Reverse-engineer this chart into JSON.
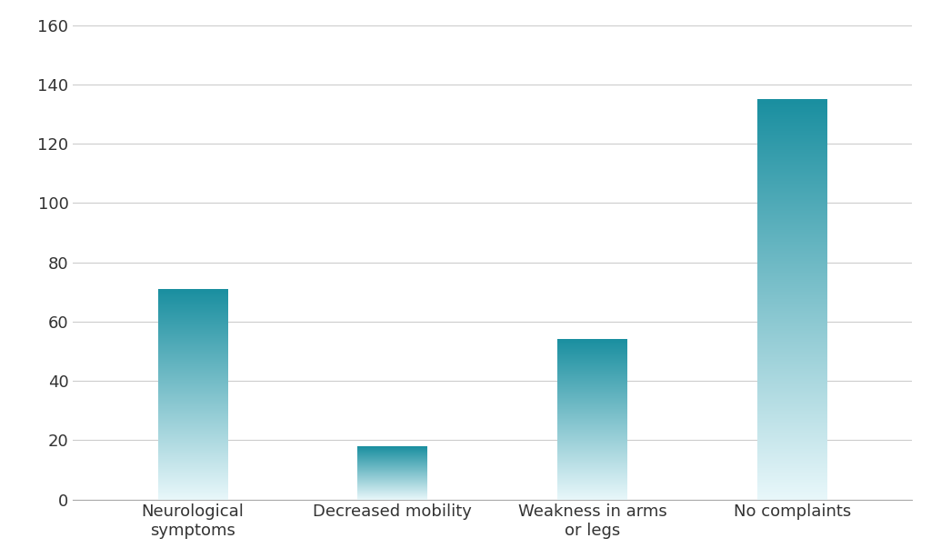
{
  "categories": [
    "Neurological\nsymptoms",
    "Decreased mobility",
    "Weakness in arms\nor legs",
    "No complaints"
  ],
  "values": [
    71,
    18,
    54,
    135
  ],
  "bar_color_top": "#1a8fa0",
  "bar_color_bottom": "#e8f7fa",
  "ylim": [
    0,
    160
  ],
  "yticks": [
    0,
    20,
    40,
    60,
    80,
    100,
    120,
    140,
    160
  ],
  "background_color": "#ffffff",
  "grid_color": "#cccccc",
  "tick_label_fontsize": 13,
  "bar_width": 0.35,
  "figsize": [
    10.24,
    6.14
  ],
  "dpi": 100
}
